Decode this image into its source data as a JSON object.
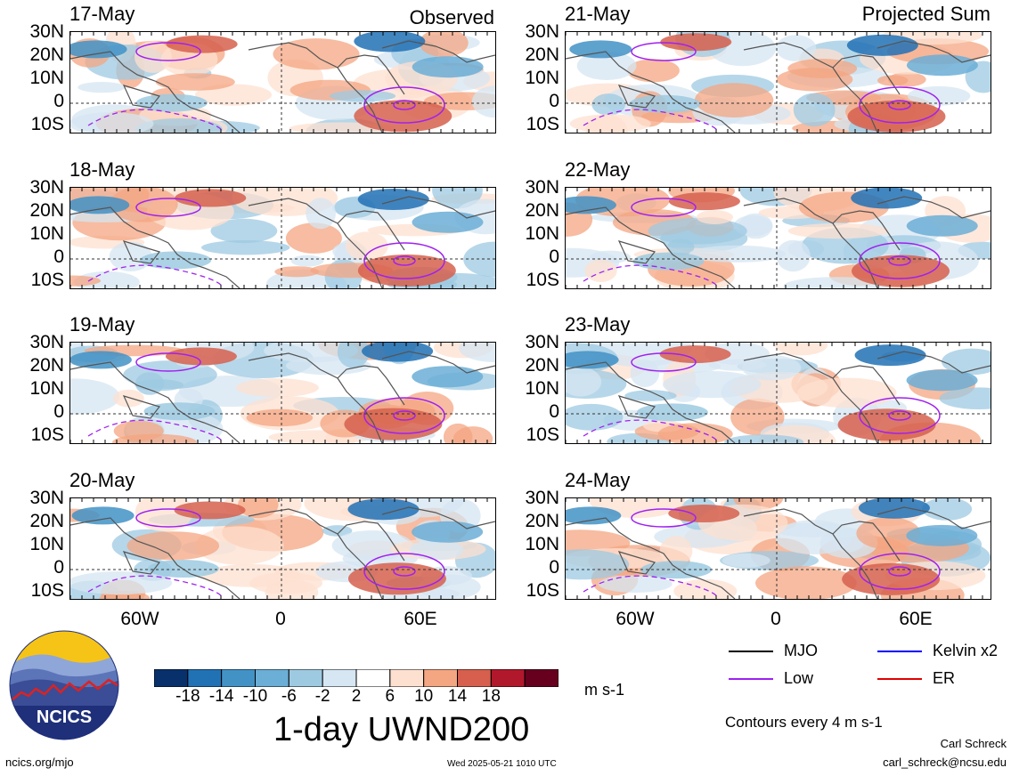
{
  "panels": {
    "left": {
      "corner_label": "Observed",
      "dates": [
        "17-May",
        "18-May",
        "19-May",
        "20-May"
      ]
    },
    "right": {
      "corner_label": "Projected Sum",
      "dates": [
        "21-May",
        "22-May",
        "23-May",
        "24-May"
      ]
    }
  },
  "lat_labels": [
    "30N",
    "20N",
    "10N",
    "0",
    "10S"
  ],
  "lon_labels": [
    "60W",
    "0",
    "60E"
  ],
  "colorbar": {
    "ticks": [
      "-18",
      "-14",
      "-10",
      "-6",
      "-2",
      "2",
      "6",
      "10",
      "14",
      "18"
    ],
    "colors": [
      "#08306b",
      "#2171b5",
      "#4292c6",
      "#6baed6",
      "#9ecae1",
      "#d6e6f2",
      "#ffffff",
      "#fde0d0",
      "#f4a582",
      "#d6604d",
      "#b2182b",
      "#67001f"
    ],
    "units": "m s-1",
    "title": "1-day UWND200"
  },
  "legend": {
    "items": [
      {
        "label": "MJO",
        "color": "#000000"
      },
      {
        "label": "Kelvin x2",
        "color": "#0000ff"
      },
      {
        "label": "Low",
        "color": "#a020f0"
      },
      {
        "label": "ER",
        "color": "#e00000"
      }
    ],
    "contour_note": "Contours every 4 m s-1"
  },
  "logo_text": "NCICS",
  "footer": {
    "website": "ncics.org/mjo",
    "timestamp": "Wed 2025-05-21 1010 UTC",
    "author": "Carl Schreck",
    "email": "carl_schreck@ncsu.edu"
  }
}
